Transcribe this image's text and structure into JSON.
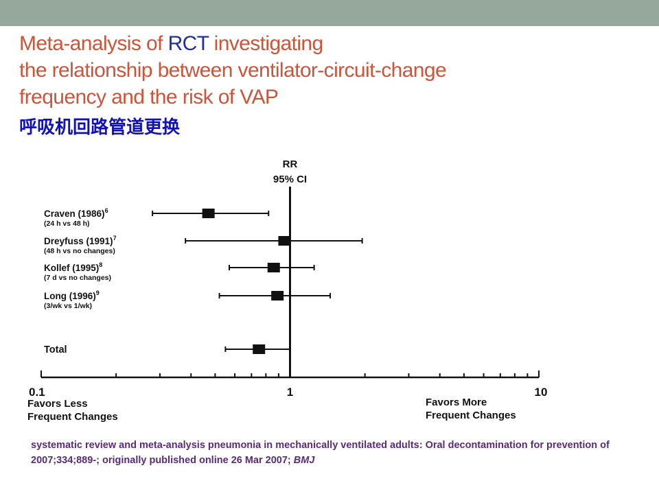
{
  "colors": {
    "topbar": "#96a79c",
    "title": "#c9553a",
    "title_highlight": "#1f2fa8",
    "subtitle": "#1111b8",
    "citation": "#5a2a7a",
    "ink": "#111111"
  },
  "slide": {
    "title_line1_part1": "Meta-analysis of ",
    "title_line1_highlight": "RCT",
    "title_line1_part2": " investigating",
    "title_line2": "the relationship between ventilator-circuit-change",
    "title_line3": "frequency and the risk of VAP",
    "subtitle": "呼吸机回路管道更换",
    "citation_text": "systematic review and meta-analysis pneumonia in mechanically ventilated adults: Oral decontamination for prevention of 2007;334;889-; originally published online 26 Mar 2007; ",
    "citation_journal": "BMJ"
  },
  "chart_data": {
    "type": "forest",
    "header_line1": "RR",
    "header_line2": "95% CI",
    "x_scale": "log",
    "xlim": [
      0.1,
      10
    ],
    "reference_line": 1,
    "tick_labels": [
      "0.1",
      "1",
      "10"
    ],
    "left_label_line1": "Favors Less",
    "left_label_line2": "Frequent Changes",
    "right_label_line1": "Favors More",
    "right_label_line2": "Frequent Changes",
    "studies": [
      {
        "label": "Craven (1986)",
        "sup": "6",
        "sublabel": "(24 h vs 48 h)",
        "rr": 0.47,
        "lower": 0.28,
        "upper": 0.82
      },
      {
        "label": "Dreyfuss (1991)",
        "sup": "7",
        "sublabel": "(48 h vs no changes)",
        "rr": 0.95,
        "lower": 0.38,
        "upper": 1.95
      },
      {
        "label": "Kollef (1995)",
        "sup": "8",
        "sublabel": "(7 d vs no changes)",
        "rr": 0.86,
        "lower": 0.57,
        "upper": 1.25
      },
      {
        "label": "Long (1996)",
        "sup": "9",
        "sublabel": "(3/wk vs 1/wk)",
        "rr": 0.89,
        "lower": 0.52,
        "upper": 1.45
      }
    ],
    "total": {
      "label": "Total",
      "rr": 0.75,
      "lower": 0.55,
      "upper": 1.0
    }
  }
}
